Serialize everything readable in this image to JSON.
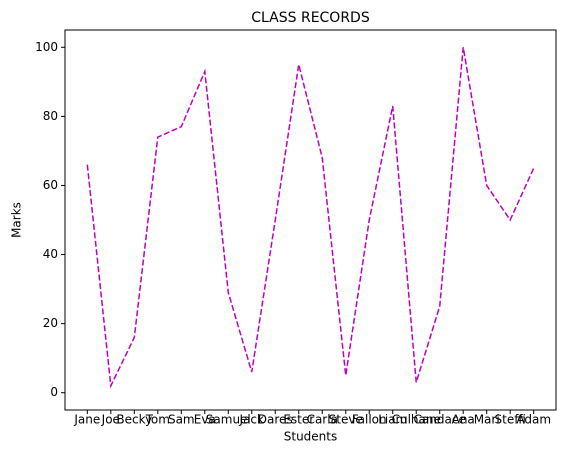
{
  "chart_data": {
    "type": "line",
    "title": "CLASS RECORDS",
    "x_label": "Students",
    "y_label": "Marks",
    "categories": [
      "Jane",
      "Joe",
      "Becky",
      "Tom",
      "Sam",
      "Eva",
      "Samuel",
      "Jack",
      "Dares",
      "Ester",
      "Carla",
      "Steve",
      "Fallon",
      "Liam",
      "Culhane",
      "Candace",
      "Ana",
      "Mari",
      "Steffi",
      "Adam"
    ],
    "series": [
      {
        "name": "Marks",
        "color": "#bf00bf",
        "values": [
          66,
          2,
          16,
          74,
          77,
          93,
          29,
          6,
          50,
          95,
          68,
          5,
          50,
          83,
          3,
          25,
          100,
          60,
          50,
          65
        ]
      }
    ],
    "ylim": [
      -5,
      105
    ],
    "yticks": [
      0,
      20,
      40,
      60,
      80,
      100
    ],
    "line_style": "dashed"
  }
}
